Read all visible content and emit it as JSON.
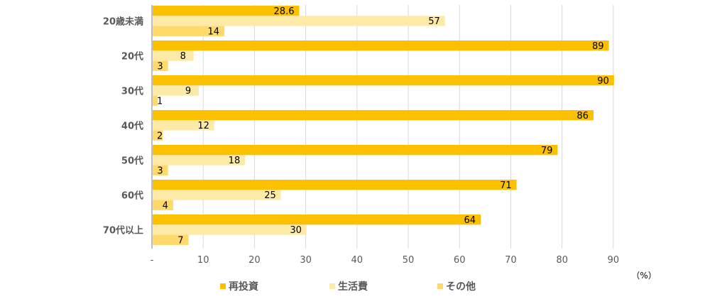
{
  "chart_data": {
    "type": "bar",
    "orientation": "horizontal",
    "categories": [
      "20歳未満",
      "20代",
      "30代",
      "40代",
      "50代",
      "60代",
      "70代以上"
    ],
    "series": [
      {
        "name": "再投資",
        "values": [
          28.6,
          89,
          90,
          86,
          79,
          71,
          64
        ],
        "color": "#FBC000"
      },
      {
        "name": "生活費",
        "values": [
          57,
          8,
          9,
          12,
          18,
          25,
          30
        ],
        "color": "#FDEAA6"
      },
      {
        "name": "その他",
        "values": [
          14,
          3,
          1,
          2,
          3,
          4,
          7
        ],
        "color": "#FFDA6B"
      }
    ],
    "xlim": [
      0,
      90
    ],
    "x_ticks": [
      "-",
      "10",
      "20",
      "30",
      "40",
      "50",
      "60",
      "70",
      "80",
      "90"
    ],
    "unit_label": "（%）",
    "grid": true,
    "legend_position": "bottom",
    "data_labels": true
  },
  "colors": {
    "grid": "#D9D9D9",
    "axis": "#7F7F7F",
    "category_text": "#595959",
    "tick_text": "#595959",
    "label_text": "#000000"
  }
}
